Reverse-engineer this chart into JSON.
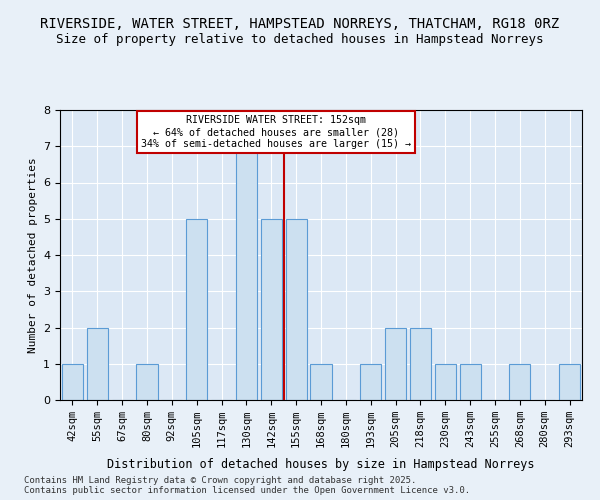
{
  "title1": "RIVERSIDE, WATER STREET, HAMPSTEAD NORREYS, THATCHAM, RG18 0RZ",
  "title2": "Size of property relative to detached houses in Hampstead Norreys",
  "xlabel": "Distribution of detached houses by size in Hampstead Norreys",
  "ylabel": "Number of detached properties",
  "categories": [
    "42sqm",
    "55sqm",
    "67sqm",
    "80sqm",
    "92sqm",
    "105sqm",
    "117sqm",
    "130sqm",
    "142sqm",
    "155sqm",
    "168sqm",
    "180sqm",
    "193sqm",
    "205sqm",
    "218sqm",
    "230sqm",
    "243sqm",
    "255sqm",
    "268sqm",
    "280sqm",
    "293sqm"
  ],
  "values": [
    1,
    2,
    0,
    1,
    0,
    5,
    0,
    7,
    5,
    5,
    1,
    0,
    1,
    2,
    2,
    1,
    1,
    0,
    1,
    0,
    1
  ],
  "bar_color": "#cce0f0",
  "bar_edge_color": "#5b9bd5",
  "vline_color": "#c00000",
  "annotation_title": "RIVERSIDE WATER STREET: 152sqm",
  "annotation_line1": "← 64% of detached houses are smaller (28)",
  "annotation_line2": "34% of semi-detached houses are larger (15) →",
  "annotation_box_color": "#ffffff",
  "annotation_box_edge": "#c00000",
  "ylim": [
    0,
    8
  ],
  "yticks": [
    0,
    1,
    2,
    3,
    4,
    5,
    6,
    7,
    8
  ],
  "background_color": "#e8f0f8",
  "plot_background": "#dce8f5",
  "footer": "Contains HM Land Registry data © Crown copyright and database right 2025.\nContains public sector information licensed under the Open Government Licence v3.0.",
  "title_fontsize": 10,
  "subtitle_fontsize": 9
}
